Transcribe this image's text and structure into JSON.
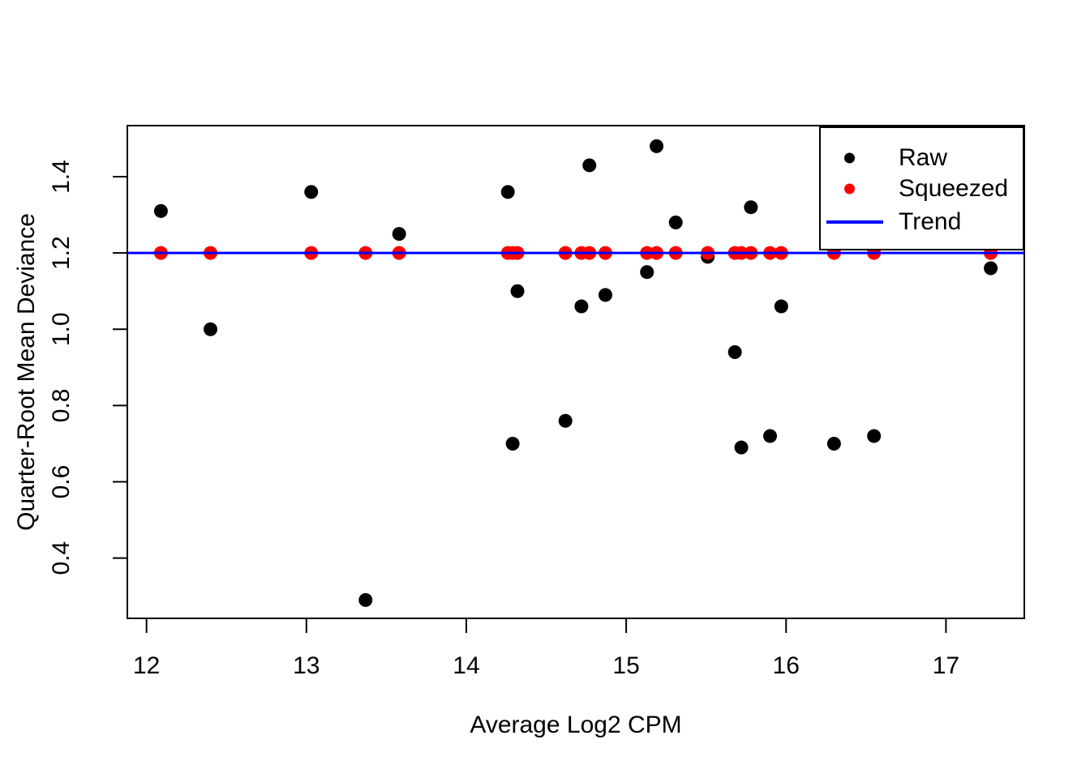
{
  "chart_data": {
    "type": "scatter",
    "title": "",
    "xlabel": "Average Log2 CPM",
    "ylabel": "Quarter-Root Mean Deviance",
    "xlim": [
      11.88,
      17.49
    ],
    "ylim": [
      0.242,
      1.534
    ],
    "x_ticks": [
      12,
      13,
      14,
      15,
      16,
      17
    ],
    "y_ticks": [
      0.4,
      0.6,
      0.8,
      1.0,
      1.2,
      1.4
    ],
    "grid": false,
    "legend_position": "topright",
    "background": "#ffffff",
    "frame_color": "#000000",
    "x": [
      12.09,
      12.4,
      13.03,
      13.37,
      13.58,
      14.26,
      14.29,
      14.32,
      14.62,
      14.72,
      14.77,
      14.87,
      15.13,
      15.19,
      15.31,
      15.51,
      15.68,
      15.72,
      15.78,
      15.9,
      15.97,
      16.3,
      16.55,
      17.28
    ],
    "series": [
      {
        "name": "Raw",
        "type": "points",
        "color": "#000000",
        "values": [
          1.31,
          1.0,
          1.36,
          0.29,
          1.25,
          1.36,
          0.7,
          1.1,
          0.76,
          1.06,
          1.43,
          1.09,
          1.15,
          1.48,
          1.28,
          1.19,
          0.94,
          0.69,
          1.32,
          0.72,
          1.06,
          0.7,
          0.72,
          1.16
        ]
      },
      {
        "name": "Squeezed",
        "type": "points",
        "color": "#ff0000",
        "values": [
          1.2,
          1.2,
          1.2,
          1.2,
          1.2,
          1.2,
          1.2,
          1.2,
          1.2,
          1.2,
          1.2,
          1.2,
          1.2,
          1.2,
          1.2,
          1.2,
          1.2,
          1.2,
          1.2,
          1.2,
          1.2,
          1.2,
          1.2,
          1.2
        ]
      },
      {
        "name": "Trend",
        "type": "hline",
        "color": "#0000ff",
        "y": 1.2
      }
    ],
    "legend": {
      "items": [
        {
          "label": "Raw",
          "marker": "dot",
          "color": "#000000"
        },
        {
          "label": "Squeezed",
          "marker": "dot",
          "color": "#ff0000"
        },
        {
          "label": "Trend",
          "marker": "line",
          "color": "#0000ff"
        }
      ]
    }
  }
}
